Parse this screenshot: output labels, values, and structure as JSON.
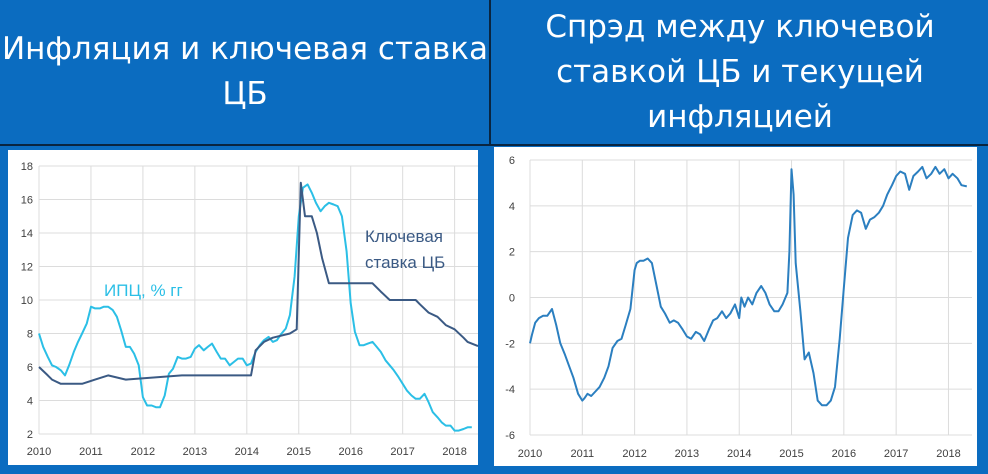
{
  "titles": {
    "left": "Инфляция и ключевая ставка ЦБ",
    "right": "Спрэд между ключевой ставкой ЦБ и текущей инфляцией"
  },
  "colors": {
    "background": "#0b6cc0",
    "cpi": "#2bbfe6",
    "key_rate": "#3b5a84",
    "spread": "#2b7fc0",
    "grid": "#dcdcdc"
  },
  "chart_data": [
    {
      "type": "line",
      "title": "Инфляция и ключевая ставка ЦБ",
      "xlim": [
        2010,
        2018.45
      ],
      "ylim": [
        2,
        18
      ],
      "xticks": [
        2010,
        2011,
        2012,
        2013,
        2014,
        2015,
        2016,
        2017,
        2018
      ],
      "yticks": [
        2,
        4,
        6,
        8,
        10,
        12,
        14,
        16,
        18
      ],
      "grid": true,
      "annotations": [
        {
          "text": "ИПЦ, % гг",
          "series": "cpi"
        },
        {
          "text": "Ключевая",
          "series": "key_rate"
        },
        {
          "text": "ставка ЦБ",
          "series": "key_rate"
        }
      ],
      "series": [
        {
          "key": "cpi",
          "name": "ИПЦ, % гг",
          "x": [
            2010,
            2010.08,
            2010.17,
            2010.25,
            2010.33,
            2010.42,
            2010.5,
            2010.58,
            2010.67,
            2010.75,
            2010.83,
            2010.92,
            2011,
            2011.08,
            2011.17,
            2011.25,
            2011.33,
            2011.42,
            2011.5,
            2011.58,
            2011.67,
            2011.75,
            2011.83,
            2011.92,
            2012,
            2012.08,
            2012.17,
            2012.25,
            2012.33,
            2012.42,
            2012.5,
            2012.58,
            2012.67,
            2012.75,
            2012.83,
            2012.92,
            2013,
            2013.08,
            2013.17,
            2013.25,
            2013.33,
            2013.42,
            2013.5,
            2013.58,
            2013.67,
            2013.75,
            2013.83,
            2013.92,
            2014,
            2014.08,
            2014.17,
            2014.25,
            2014.33,
            2014.42,
            2014.5,
            2014.58,
            2014.67,
            2014.75,
            2014.83,
            2014.92,
            2015,
            2015.08,
            2015.17,
            2015.25,
            2015.33,
            2015.42,
            2015.5,
            2015.58,
            2015.67,
            2015.75,
            2015.83,
            2015.92,
            2016,
            2016.08,
            2016.17,
            2016.25,
            2016.33,
            2016.42,
            2016.5,
            2016.58,
            2016.67,
            2016.75,
            2016.83,
            2016.92,
            2017,
            2017.08,
            2017.17,
            2017.25,
            2017.33,
            2017.42,
            2017.5,
            2017.58,
            2017.67,
            2017.75,
            2017.83,
            2017.92,
            2018,
            2018.08,
            2018.17,
            2018.25,
            2018.33
          ],
          "y": [
            8.0,
            7.2,
            6.6,
            6.1,
            6.0,
            5.8,
            5.5,
            6.1,
            6.9,
            7.5,
            8.0,
            8.6,
            9.6,
            9.5,
            9.5,
            9.6,
            9.6,
            9.4,
            9.0,
            8.2,
            7.2,
            7.2,
            6.8,
            6.1,
            4.2,
            3.7,
            3.7,
            3.6,
            3.6,
            4.3,
            5.6,
            5.9,
            6.6,
            6.5,
            6.5,
            6.6,
            7.1,
            7.3,
            7.0,
            7.2,
            7.4,
            6.9,
            6.5,
            6.5,
            6.1,
            6.3,
            6.5,
            6.5,
            6.1,
            6.2,
            6.9,
            7.3,
            7.6,
            7.8,
            7.5,
            7.6,
            8.0,
            8.3,
            9.1,
            11.4,
            15.0,
            16.7,
            16.9,
            16.4,
            15.8,
            15.3,
            15.6,
            15.8,
            15.7,
            15.6,
            15.0,
            12.9,
            9.8,
            8.1,
            7.3,
            7.3,
            7.4,
            7.5,
            7.2,
            6.9,
            6.4,
            6.1,
            5.8,
            5.4,
            5.0,
            4.6,
            4.3,
            4.1,
            4.1,
            4.4,
            3.9,
            3.3,
            3.0,
            2.7,
            2.5,
            2.5,
            2.2,
            2.2,
            2.3,
            2.4,
            2.4
          ]
        },
        {
          "key": "key_rate",
          "name": "Ключевая ставка ЦБ",
          "x": [
            2010,
            2010.17,
            2010.25,
            2010.42,
            2010.83,
            2011.08,
            2011.33,
            2011.67,
            2012.75,
            2014.08,
            2014.17,
            2014.33,
            2014.5,
            2014.83,
            2014.96,
            2015.04,
            2015.12,
            2015.25,
            2015.35,
            2015.45,
            2015.58,
            2016.42,
            2016.58,
            2016.75,
            2017.25,
            2017.33,
            2017.5,
            2017.67,
            2017.83,
            2018.0,
            2018.17,
            2018.25,
            2018.45
          ],
          "y": [
            6.0,
            5.5,
            5.25,
            5.0,
            5.0,
            5.25,
            5.5,
            5.25,
            5.5,
            5.5,
            7.0,
            7.5,
            7.75,
            8.0,
            8.25,
            17.0,
            15.0,
            15.0,
            14.0,
            12.5,
            11.0,
            11.0,
            10.5,
            10.0,
            10.0,
            9.75,
            9.25,
            9.0,
            8.5,
            8.25,
            7.75,
            7.5,
            7.25
          ]
        }
      ]
    },
    {
      "type": "line",
      "title": "Спрэд между ключевой ставкой ЦБ и текущей инфляцией",
      "xlim": [
        2010,
        2018.45
      ],
      "ylim": [
        -6,
        6
      ],
      "xticks": [
        2010,
        2011,
        2012,
        2013,
        2014,
        2015,
        2016,
        2017,
        2018
      ],
      "yticks": [
        -6,
        -4,
        -2,
        0,
        2,
        4,
        6
      ],
      "grid": true,
      "series": [
        {
          "key": "spread",
          "x": [
            2010,
            2010.04,
            2010.1,
            2010.17,
            2010.25,
            2010.33,
            2010.42,
            2010.5,
            2010.58,
            2010.67,
            2010.75,
            2010.83,
            2010.92,
            2011,
            2011.04,
            2011.1,
            2011.17,
            2011.25,
            2011.33,
            2011.42,
            2011.5,
            2011.58,
            2011.67,
            2011.75,
            2011.83,
            2011.92,
            2012,
            2012.04,
            2012.1,
            2012.17,
            2012.25,
            2012.33,
            2012.42,
            2012.5,
            2012.58,
            2012.67,
            2012.75,
            2012.83,
            2012.92,
            2013,
            2013.08,
            2013.17,
            2013.25,
            2013.33,
            2013.42,
            2013.5,
            2013.58,
            2013.67,
            2013.75,
            2013.83,
            2013.92,
            2014,
            2014.04,
            2014.1,
            2014.17,
            2014.25,
            2014.33,
            2014.42,
            2014.5,
            2014.58,
            2014.67,
            2014.75,
            2014.83,
            2014.92,
            2014.96,
            2015.0,
            2015.04,
            2015.08,
            2015.17,
            2015.25,
            2015.33,
            2015.42,
            2015.5,
            2015.58,
            2015.67,
            2015.75,
            2015.83,
            2015.92,
            2016.0,
            2016.08,
            2016.17,
            2016.25,
            2016.33,
            2016.42,
            2016.5,
            2016.58,
            2016.67,
            2016.75,
            2016.83,
            2016.92,
            2017.0,
            2017.08,
            2017.17,
            2017.25,
            2017.33,
            2017.42,
            2017.5,
            2017.58,
            2017.67,
            2017.75,
            2017.83,
            2017.92,
            2018.0,
            2018.08,
            2018.17,
            2018.25,
            2018.35
          ],
          "y": [
            -2.0,
            -1.6,
            -1.1,
            -0.9,
            -0.8,
            -0.8,
            -0.5,
            -1.2,
            -2.0,
            -2.5,
            -3.0,
            -3.5,
            -4.2,
            -4.5,
            -4.4,
            -4.2,
            -4.3,
            -4.1,
            -3.9,
            -3.5,
            -3.0,
            -2.2,
            -1.9,
            -1.8,
            -1.2,
            -0.5,
            1.2,
            1.5,
            1.6,
            1.6,
            1.7,
            1.5,
            0.5,
            -0.4,
            -0.7,
            -1.1,
            -1.0,
            -1.1,
            -1.4,
            -1.7,
            -1.8,
            -1.5,
            -1.6,
            -1.9,
            -1.4,
            -1.0,
            -0.9,
            -0.6,
            -0.9,
            -0.7,
            -0.3,
            -0.9,
            0.0,
            -0.4,
            0.0,
            -0.3,
            0.2,
            0.5,
            0.2,
            -0.3,
            -0.6,
            -0.6,
            -0.3,
            0.2,
            2.0,
            5.6,
            4.5,
            1.5,
            -0.6,
            -2.7,
            -2.4,
            -3.3,
            -4.5,
            -4.7,
            -4.7,
            -4.5,
            -3.9,
            -1.8,
            0.4,
            2.6,
            3.6,
            3.8,
            3.7,
            3.0,
            3.4,
            3.5,
            3.7,
            4.0,
            4.5,
            4.9,
            5.3,
            5.5,
            5.4,
            4.7,
            5.3,
            5.5,
            5.7,
            5.2,
            5.4,
            5.7,
            5.4,
            5.6,
            5.2,
            5.4,
            5.2,
            4.9,
            4.85
          ]
        }
      ]
    }
  ]
}
